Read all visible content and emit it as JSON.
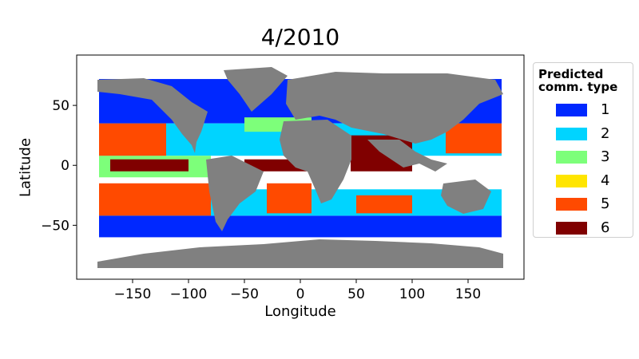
{
  "chart_data": {
    "type": "scatter",
    "title": "4/2010",
    "xlabel": "Longitude",
    "ylabel": "Latitude",
    "xlim": [
      -200,
      200
    ],
    "ylim": [
      -95,
      92
    ],
    "xticks": [
      -150,
      -100,
      -50,
      0,
      50,
      100,
      150
    ],
    "yticks": [
      -50,
      0,
      50
    ],
    "grid": false,
    "legend": {
      "title": "Predicted\ncomm. type",
      "placement": "outside-right",
      "entries": [
        {
          "label": "1",
          "color": "#0028ff"
        },
        {
          "label": "2",
          "color": "#00d4ff"
        },
        {
          "label": "3",
          "color": "#7dff7a"
        },
        {
          "label": "4",
          "color": "#ffe500"
        },
        {
          "label": "5",
          "color": "#ff4a00"
        },
        {
          "label": "6",
          "color": "#800000"
        }
      ]
    },
    "land_color": "#808080",
    "ocean_bands": [
      {
        "type": "1",
        "lon_min": -180,
        "lon_max": 180,
        "lat_min": 35,
        "lat_max": 72
      },
      {
        "type": "1",
        "lon_min": -180,
        "lon_max": 180,
        "lat_min": -60,
        "lat_max": -42
      },
      {
        "type": "2",
        "lon_min": -180,
        "lon_max": 180,
        "lat_min": -42,
        "lat_max": -20
      },
      {
        "type": "2",
        "lon_min": -180,
        "lon_max": 180,
        "lat_min": 8,
        "lat_max": 35
      },
      {
        "type": "3",
        "lon_min": -180,
        "lon_max": -80,
        "lat_min": -10,
        "lat_max": 8
      },
      {
        "type": "3",
        "lon_min": -50,
        "lon_max": 10,
        "lat_min": 28,
        "lat_max": 40
      },
      {
        "type": "5",
        "lon_min": -180,
        "lon_max": -120,
        "lat_min": 8,
        "lat_max": 35
      },
      {
        "type": "5",
        "lon_min": -180,
        "lon_max": -80,
        "lat_min": -42,
        "lat_max": -15
      },
      {
        "type": "5",
        "lon_min": -30,
        "lon_max": 10,
        "lat_min": -40,
        "lat_max": -15
      },
      {
        "type": "5",
        "lon_min": 50,
        "lon_max": 100,
        "lat_min": -40,
        "lat_max": -25
      },
      {
        "type": "5",
        "lon_min": 130,
        "lon_max": 180,
        "lat_min": 10,
        "lat_max": 35
      },
      {
        "type": "6",
        "lon_min": 45,
        "lon_max": 100,
        "lat_min": -5,
        "lat_max": 25
      },
      {
        "type": "6",
        "lon_min": -50,
        "lon_max": 10,
        "lat_min": -5,
        "lat_max": 5
      },
      {
        "type": "6",
        "lon_min": -170,
        "lon_max": -100,
        "lat_min": -5,
        "lat_max": 5
      }
    ]
  }
}
